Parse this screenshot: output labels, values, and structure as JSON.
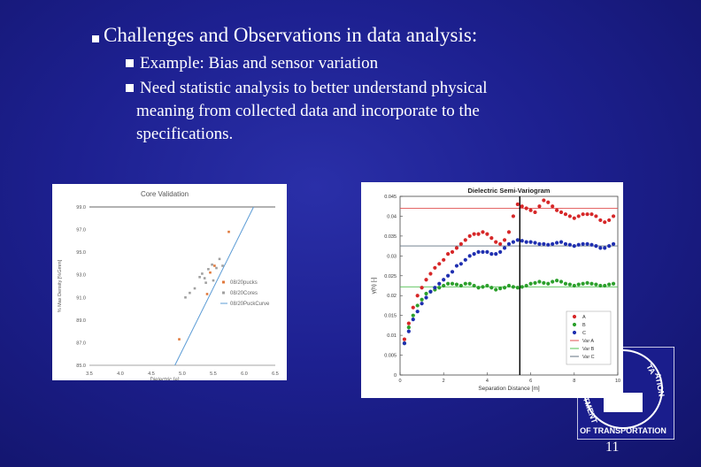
{
  "slide": {
    "heading": "Challenges and Observations in data analysis:",
    "bullets": [
      "Example: Bias and sensor variation",
      "Need statistic analysis to better understand physical",
      "meaning from collected data and incorporate to the",
      "specifications."
    ],
    "page_number": "11"
  },
  "logo": {
    "text_bottom": "OF TRANSPORTATION",
    "text_left": "TMENT",
    "text_right": "ATION",
    "text_top": "TA"
  },
  "colors": {
    "background": "#1d2090",
    "text": "#ffffff"
  },
  "chart_data": [
    {
      "type": "scatter",
      "title": "Core Validation",
      "xlabel": "Dielectric [e]",
      "ylabel": "% Max Density [%Gmm]",
      "xlim": [
        3.5,
        6.5
      ],
      "ylim": [
        85.0,
        99.0
      ],
      "x_ticks": [
        "3.5",
        "4.0",
        "4.5",
        "5.0",
        "5.5",
        "6.0",
        "6.5"
      ],
      "y_ticks": [
        "85.0",
        "87.0",
        "89.0",
        "91.0",
        "93.0",
        "95.0",
        "97.0",
        "99.0"
      ],
      "series": [
        {
          "name": "08/20pucks",
          "color": "#e0793c",
          "kind": "points",
          "x": [
            4.95,
            5.4,
            5.75,
            5.52,
            5.45
          ],
          "y": [
            87.3,
            91.3,
            96.8,
            93.8,
            93.2
          ]
        },
        {
          "name": "08/20Cores",
          "color": "#a0a0a0",
          "kind": "points",
          "x": [
            5.05,
            5.12,
            5.2,
            5.28,
            5.32,
            5.36,
            5.42,
            5.48,
            5.55,
            5.6,
            5.65,
            5.38,
            5.5
          ],
          "y": [
            91.0,
            91.4,
            91.8,
            92.8,
            93.1,
            92.7,
            93.5,
            93.9,
            93.6,
            94.4,
            93.8,
            92.3,
            92.5
          ]
        },
        {
          "name": "08/20PuckCurve",
          "color": "#5b9bd5",
          "kind": "line",
          "x": [
            4.88,
            6.15
          ],
          "y": [
            85.0,
            99.0
          ]
        }
      ],
      "reference_line_y": 99.0
    },
    {
      "type": "scatter",
      "title": "Dielectric Semi-Variogram",
      "xlabel": "Separation Distance [m]",
      "ylabel": "γ(h) [-]",
      "xlim": [
        0,
        10
      ],
      "ylim": [
        0,
        0.045
      ],
      "x_ticks": [
        "0",
        "2",
        "4",
        "6",
        "8",
        "10"
      ],
      "y_ticks": [
        "0",
        "0.005",
        "0.01",
        "0.015",
        "0.02",
        "0.025",
        "0.03",
        "0.035",
        "0.04",
        "0.045"
      ],
      "vertical_marker_x": 5.5,
      "series": [
        {
          "name": "A",
          "color": "#d62728",
          "kind": "points",
          "x": [
            0.2,
            0.4,
            0.6,
            0.8,
            1.0,
            1.2,
            1.4,
            1.6,
            1.8,
            2.0,
            2.2,
            2.4,
            2.6,
            2.8,
            3.0,
            3.2,
            3.4,
            3.6,
            3.8,
            4.0,
            4.2,
            4.4,
            4.6,
            4.8,
            5.0,
            5.2,
            5.4,
            5.6,
            5.8,
            6.0,
            6.2,
            6.4,
            6.6,
            6.8,
            7.0,
            7.2,
            7.4,
            7.6,
            7.8,
            8.0,
            8.2,
            8.4,
            8.6,
            8.8,
            9.0,
            9.2,
            9.4,
            9.6,
            9.8
          ],
          "y": [
            0.009,
            0.013,
            0.017,
            0.02,
            0.022,
            0.024,
            0.0255,
            0.027,
            0.028,
            0.029,
            0.0305,
            0.031,
            0.032,
            0.033,
            0.034,
            0.035,
            0.0355,
            0.0355,
            0.036,
            0.0355,
            0.0345,
            0.0335,
            0.033,
            0.034,
            0.036,
            0.04,
            0.043,
            0.0425,
            0.042,
            0.0415,
            0.041,
            0.0425,
            0.044,
            0.0435,
            0.0425,
            0.0415,
            0.041,
            0.0405,
            0.04,
            0.0395,
            0.04,
            0.0405,
            0.0405,
            0.0405,
            0.04,
            0.039,
            0.0385,
            0.039,
            0.04
          ]
        },
        {
          "name": "B",
          "color": "#2ca02c",
          "kind": "points",
          "x": [
            0.2,
            0.4,
            0.6,
            0.8,
            1.0,
            1.2,
            1.4,
            1.6,
            1.8,
            2.0,
            2.2,
            2.4,
            2.6,
            2.8,
            3.0,
            3.2,
            3.4,
            3.6,
            3.8,
            4.0,
            4.2,
            4.4,
            4.6,
            4.8,
            5.0,
            5.2,
            5.4,
            5.6,
            5.8,
            6.0,
            6.2,
            6.4,
            6.6,
            6.8,
            7.0,
            7.2,
            7.4,
            7.6,
            7.8,
            8.0,
            8.2,
            8.4,
            8.6,
            8.8,
            9.0,
            9.2,
            9.4,
            9.6,
            9.8
          ],
          "y": [
            0.008,
            0.012,
            0.015,
            0.0175,
            0.019,
            0.0205,
            0.021,
            0.0215,
            0.022,
            0.0225,
            0.023,
            0.023,
            0.0228,
            0.0225,
            0.023,
            0.023,
            0.0225,
            0.022,
            0.0222,
            0.0225,
            0.022,
            0.0215,
            0.0218,
            0.022,
            0.0225,
            0.0222,
            0.022,
            0.0222,
            0.0225,
            0.023,
            0.0232,
            0.0235,
            0.0232,
            0.023,
            0.0235,
            0.0238,
            0.0235,
            0.023,
            0.0228,
            0.0225,
            0.0228,
            0.023,
            0.0232,
            0.023,
            0.0228,
            0.0225,
            0.0225,
            0.0228,
            0.023
          ]
        },
        {
          "name": "C",
          "color": "#1f2fb0",
          "kind": "points",
          "x": [
            0.2,
            0.4,
            0.6,
            0.8,
            1.0,
            1.2,
            1.4,
            1.6,
            1.8,
            2.0,
            2.2,
            2.4,
            2.6,
            2.8,
            3.0,
            3.2,
            3.4,
            3.6,
            3.8,
            4.0,
            4.2,
            4.4,
            4.6,
            4.8,
            5.0,
            5.2,
            5.4,
            5.6,
            5.8,
            6.0,
            6.2,
            6.4,
            6.6,
            6.8,
            7.0,
            7.2,
            7.4,
            7.6,
            7.8,
            8.0,
            8.2,
            8.4,
            8.6,
            8.8,
            9.0,
            9.2,
            9.4,
            9.6,
            9.8
          ],
          "y": [
            0.008,
            0.011,
            0.014,
            0.016,
            0.018,
            0.0195,
            0.021,
            0.022,
            0.023,
            0.024,
            0.025,
            0.026,
            0.0275,
            0.028,
            0.029,
            0.03,
            0.0305,
            0.031,
            0.031,
            0.031,
            0.0305,
            0.0305,
            0.031,
            0.032,
            0.033,
            0.0335,
            0.034,
            0.0338,
            0.0335,
            0.0335,
            0.0333,
            0.033,
            0.033,
            0.0328,
            0.033,
            0.0333,
            0.0335,
            0.033,
            0.0328,
            0.0325,
            0.0328,
            0.033,
            0.033,
            0.0328,
            0.0325,
            0.032,
            0.032,
            0.0325,
            0.033
          ]
        },
        {
          "name": "Var A",
          "color": "#e05050",
          "kind": "hline",
          "y": 0.042
        },
        {
          "name": "Var B",
          "color": "#50c050",
          "kind": "hline",
          "y": 0.0222
        },
        {
          "name": "Var C",
          "color": "#607080",
          "kind": "hline",
          "y": 0.0325
        }
      ]
    }
  ]
}
